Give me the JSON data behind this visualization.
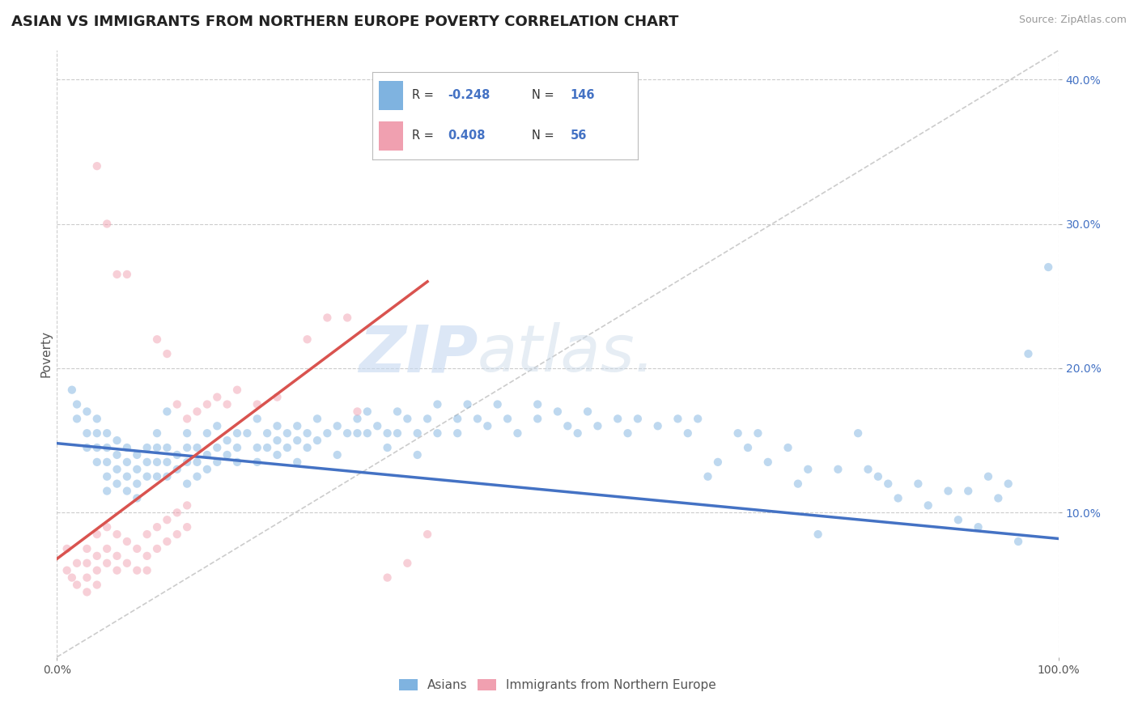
{
  "title": "ASIAN VS IMMIGRANTS FROM NORTHERN EUROPE POVERTY CORRELATION CHART",
  "source": "Source: ZipAtlas.com",
  "ylabel": "Poverty",
  "watermark_zip": "ZIP",
  "watermark_atlas": "atlas.",
  "xlim": [
    0.0,
    1.0
  ],
  "ylim": [
    0.0,
    0.42
  ],
  "xtick_positions": [
    0.0,
    1.0
  ],
  "xticklabels": [
    "0.0%",
    "100.0%"
  ],
  "ytick_positions": [
    0.1,
    0.2,
    0.3,
    0.4
  ],
  "yticklabels": [
    "10.0%",
    "20.0%",
    "30.0%",
    "40.0%"
  ],
  "grid_color": "#cccccc",
  "background_color": "#ffffff",
  "blue_color": "#7fb3e0",
  "pink_color": "#f0a0b0",
  "blue_line_color": "#4472c4",
  "pink_line_color": "#d9534f",
  "diag_color": "#cccccc",
  "title_color": "#222222",
  "title_fontsize": 13,
  "label_fontsize": 11,
  "tick_fontsize": 10,
  "scatter_alpha": 0.5,
  "scatter_size": 55,
  "blue_scatter": [
    [
      0.015,
      0.185
    ],
    [
      0.02,
      0.175
    ],
    [
      0.02,
      0.165
    ],
    [
      0.03,
      0.17
    ],
    [
      0.03,
      0.155
    ],
    [
      0.03,
      0.145
    ],
    [
      0.04,
      0.165
    ],
    [
      0.04,
      0.155
    ],
    [
      0.04,
      0.145
    ],
    [
      0.04,
      0.135
    ],
    [
      0.05,
      0.155
    ],
    [
      0.05,
      0.145
    ],
    [
      0.05,
      0.135
    ],
    [
      0.05,
      0.125
    ],
    [
      0.05,
      0.115
    ],
    [
      0.06,
      0.15
    ],
    [
      0.06,
      0.14
    ],
    [
      0.06,
      0.13
    ],
    [
      0.06,
      0.12
    ],
    [
      0.07,
      0.145
    ],
    [
      0.07,
      0.135
    ],
    [
      0.07,
      0.125
    ],
    [
      0.07,
      0.115
    ],
    [
      0.08,
      0.14
    ],
    [
      0.08,
      0.13
    ],
    [
      0.08,
      0.12
    ],
    [
      0.08,
      0.11
    ],
    [
      0.09,
      0.145
    ],
    [
      0.09,
      0.135
    ],
    [
      0.09,
      0.125
    ],
    [
      0.1,
      0.155
    ],
    [
      0.1,
      0.145
    ],
    [
      0.1,
      0.135
    ],
    [
      0.1,
      0.125
    ],
    [
      0.11,
      0.17
    ],
    [
      0.11,
      0.145
    ],
    [
      0.11,
      0.135
    ],
    [
      0.11,
      0.125
    ],
    [
      0.12,
      0.14
    ],
    [
      0.12,
      0.13
    ],
    [
      0.13,
      0.155
    ],
    [
      0.13,
      0.145
    ],
    [
      0.13,
      0.135
    ],
    [
      0.13,
      0.12
    ],
    [
      0.14,
      0.145
    ],
    [
      0.14,
      0.135
    ],
    [
      0.14,
      0.125
    ],
    [
      0.15,
      0.155
    ],
    [
      0.15,
      0.14
    ],
    [
      0.15,
      0.13
    ],
    [
      0.16,
      0.16
    ],
    [
      0.16,
      0.145
    ],
    [
      0.16,
      0.135
    ],
    [
      0.17,
      0.15
    ],
    [
      0.17,
      0.14
    ],
    [
      0.18,
      0.155
    ],
    [
      0.18,
      0.145
    ],
    [
      0.18,
      0.135
    ],
    [
      0.19,
      0.155
    ],
    [
      0.2,
      0.165
    ],
    [
      0.2,
      0.145
    ],
    [
      0.2,
      0.135
    ],
    [
      0.21,
      0.155
    ],
    [
      0.21,
      0.145
    ],
    [
      0.22,
      0.16
    ],
    [
      0.22,
      0.15
    ],
    [
      0.22,
      0.14
    ],
    [
      0.23,
      0.155
    ],
    [
      0.23,
      0.145
    ],
    [
      0.24,
      0.16
    ],
    [
      0.24,
      0.15
    ],
    [
      0.24,
      0.135
    ],
    [
      0.25,
      0.155
    ],
    [
      0.25,
      0.145
    ],
    [
      0.26,
      0.165
    ],
    [
      0.26,
      0.15
    ],
    [
      0.27,
      0.155
    ],
    [
      0.28,
      0.16
    ],
    [
      0.28,
      0.14
    ],
    [
      0.29,
      0.155
    ],
    [
      0.3,
      0.165
    ],
    [
      0.3,
      0.155
    ],
    [
      0.31,
      0.17
    ],
    [
      0.31,
      0.155
    ],
    [
      0.32,
      0.16
    ],
    [
      0.33,
      0.155
    ],
    [
      0.33,
      0.145
    ],
    [
      0.34,
      0.17
    ],
    [
      0.34,
      0.155
    ],
    [
      0.35,
      0.165
    ],
    [
      0.36,
      0.155
    ],
    [
      0.36,
      0.14
    ],
    [
      0.37,
      0.165
    ],
    [
      0.38,
      0.155
    ],
    [
      0.38,
      0.175
    ],
    [
      0.4,
      0.165
    ],
    [
      0.4,
      0.155
    ],
    [
      0.41,
      0.175
    ],
    [
      0.42,
      0.165
    ],
    [
      0.43,
      0.16
    ],
    [
      0.44,
      0.175
    ],
    [
      0.45,
      0.165
    ],
    [
      0.46,
      0.155
    ],
    [
      0.48,
      0.175
    ],
    [
      0.48,
      0.165
    ],
    [
      0.5,
      0.17
    ],
    [
      0.51,
      0.16
    ],
    [
      0.52,
      0.155
    ],
    [
      0.53,
      0.17
    ],
    [
      0.54,
      0.16
    ],
    [
      0.56,
      0.165
    ],
    [
      0.57,
      0.155
    ],
    [
      0.58,
      0.165
    ],
    [
      0.6,
      0.16
    ],
    [
      0.62,
      0.165
    ],
    [
      0.63,
      0.155
    ],
    [
      0.64,
      0.165
    ],
    [
      0.65,
      0.125
    ],
    [
      0.66,
      0.135
    ],
    [
      0.68,
      0.155
    ],
    [
      0.69,
      0.145
    ],
    [
      0.7,
      0.155
    ],
    [
      0.71,
      0.135
    ],
    [
      0.73,
      0.145
    ],
    [
      0.74,
      0.12
    ],
    [
      0.75,
      0.13
    ],
    [
      0.76,
      0.085
    ],
    [
      0.78,
      0.13
    ],
    [
      0.8,
      0.155
    ],
    [
      0.81,
      0.13
    ],
    [
      0.82,
      0.125
    ],
    [
      0.83,
      0.12
    ],
    [
      0.84,
      0.11
    ],
    [
      0.86,
      0.12
    ],
    [
      0.87,
      0.105
    ],
    [
      0.89,
      0.115
    ],
    [
      0.9,
      0.095
    ],
    [
      0.91,
      0.115
    ],
    [
      0.92,
      0.09
    ],
    [
      0.93,
      0.125
    ],
    [
      0.94,
      0.11
    ],
    [
      0.95,
      0.12
    ],
    [
      0.96,
      0.08
    ],
    [
      0.97,
      0.21
    ],
    [
      0.99,
      0.27
    ]
  ],
  "pink_scatter": [
    [
      0.01,
      0.075
    ],
    [
      0.01,
      0.06
    ],
    [
      0.015,
      0.055
    ],
    [
      0.02,
      0.065
    ],
    [
      0.02,
      0.05
    ],
    [
      0.03,
      0.075
    ],
    [
      0.03,
      0.065
    ],
    [
      0.03,
      0.055
    ],
    [
      0.03,
      0.045
    ],
    [
      0.04,
      0.085
    ],
    [
      0.04,
      0.07
    ],
    [
      0.04,
      0.06
    ],
    [
      0.04,
      0.05
    ],
    [
      0.05,
      0.09
    ],
    [
      0.05,
      0.075
    ],
    [
      0.05,
      0.065
    ],
    [
      0.06,
      0.085
    ],
    [
      0.06,
      0.07
    ],
    [
      0.06,
      0.06
    ],
    [
      0.07,
      0.08
    ],
    [
      0.07,
      0.065
    ],
    [
      0.08,
      0.075
    ],
    [
      0.08,
      0.06
    ],
    [
      0.09,
      0.085
    ],
    [
      0.09,
      0.07
    ],
    [
      0.09,
      0.06
    ],
    [
      0.1,
      0.09
    ],
    [
      0.1,
      0.075
    ],
    [
      0.11,
      0.095
    ],
    [
      0.11,
      0.08
    ],
    [
      0.12,
      0.1
    ],
    [
      0.12,
      0.085
    ],
    [
      0.13,
      0.105
    ],
    [
      0.13,
      0.09
    ],
    [
      0.04,
      0.34
    ],
    [
      0.05,
      0.3
    ],
    [
      0.06,
      0.265
    ],
    [
      0.07,
      0.265
    ],
    [
      0.1,
      0.22
    ],
    [
      0.11,
      0.21
    ],
    [
      0.12,
      0.175
    ],
    [
      0.13,
      0.165
    ],
    [
      0.14,
      0.17
    ],
    [
      0.15,
      0.175
    ],
    [
      0.16,
      0.18
    ],
    [
      0.17,
      0.175
    ],
    [
      0.18,
      0.185
    ],
    [
      0.2,
      0.175
    ],
    [
      0.22,
      0.18
    ],
    [
      0.25,
      0.22
    ],
    [
      0.27,
      0.235
    ],
    [
      0.29,
      0.235
    ],
    [
      0.3,
      0.17
    ],
    [
      0.33,
      0.055
    ],
    [
      0.35,
      0.065
    ],
    [
      0.37,
      0.085
    ]
  ],
  "blue_trend_x": [
    0.0,
    1.0
  ],
  "blue_trend_y": [
    0.148,
    0.082
  ],
  "pink_trend_x": [
    0.0,
    0.37
  ],
  "pink_trend_y": [
    0.068,
    0.26
  ]
}
